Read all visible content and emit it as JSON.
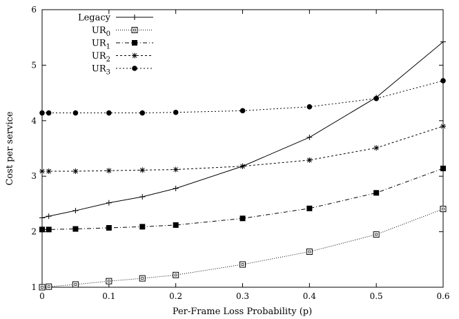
{
  "chart_data": {
    "type": "line",
    "title": "",
    "xlabel": "Per-Frame Loss Probability (p)",
    "ylabel": "Cost per service",
    "xlim": [
      0,
      0.6
    ],
    "ylim": [
      1,
      6
    ],
    "xticks": [
      "0",
      "0.1",
      "0.2",
      "0.3",
      "0.4",
      "0.5",
      "0.6"
    ],
    "yticks": [
      "1",
      "2",
      "3",
      "4",
      "5",
      "6"
    ],
    "grid": false,
    "legend_position": "top-left",
    "series": [
      {
        "name": "Legacy",
        "sub": "",
        "marker": "plus",
        "dash": "",
        "x": [
          0,
          0.01,
          0.05,
          0.1,
          0.15,
          0.2,
          0.3,
          0.4,
          0.5,
          0.6
        ],
        "y": [
          2.25,
          2.28,
          2.38,
          2.52,
          2.63,
          2.78,
          3.18,
          3.7,
          4.42,
          5.42
        ]
      },
      {
        "name": "UR",
        "sub": "0",
        "marker": "open-square",
        "dash": "1,2",
        "x": [
          0,
          0.01,
          0.05,
          0.1,
          0.15,
          0.2,
          0.3,
          0.4,
          0.5,
          0.6
        ],
        "y": [
          1.0,
          1.01,
          1.05,
          1.11,
          1.16,
          1.22,
          1.41,
          1.64,
          1.95,
          2.41
        ]
      },
      {
        "name": "UR",
        "sub": "1",
        "marker": "filled-square",
        "dash": "6,3,1,3",
        "x": [
          0,
          0.01,
          0.05,
          0.1,
          0.15,
          0.2,
          0.3,
          0.4,
          0.5,
          0.6
        ],
        "y": [
          2.04,
          2.04,
          2.05,
          2.07,
          2.09,
          2.12,
          2.24,
          2.42,
          2.7,
          3.14
        ]
      },
      {
        "name": "UR",
        "sub": "2",
        "marker": "asterisk",
        "dash": "3,3",
        "x": [
          0,
          0.01,
          0.05,
          0.1,
          0.15,
          0.2,
          0.3,
          0.4,
          0.5,
          0.6
        ],
        "y": [
          3.09,
          3.09,
          3.09,
          3.1,
          3.11,
          3.12,
          3.18,
          3.29,
          3.51,
          3.9
        ]
      },
      {
        "name": "UR",
        "sub": "3",
        "marker": "filled-circle",
        "dash": "2,3",
        "x": [
          0,
          0.01,
          0.05,
          0.1,
          0.15,
          0.2,
          0.3,
          0.4,
          0.5,
          0.6
        ],
        "y": [
          4.14,
          4.14,
          4.14,
          4.14,
          4.14,
          4.15,
          4.18,
          4.25,
          4.4,
          4.72
        ]
      }
    ]
  }
}
